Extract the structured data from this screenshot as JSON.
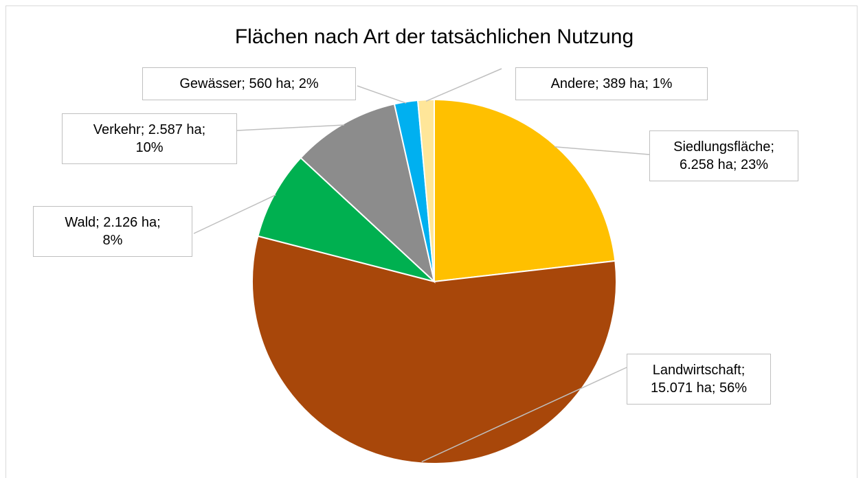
{
  "chart_data": {
    "type": "pie",
    "title": "Flächen nach Art der tatsächlichen Nutzung",
    "values": [
      6258,
      15071,
      2126,
      2587,
      560,
      389
    ],
    "value_labels": [
      "Siedlungsfläche; 6.258 ha; 23%",
      "Landwirtschaft; 15.071 ha; 56%",
      "Wald; 2.126 ha; 8%",
      "Verkehr; 2.587 ha; 10%",
      "Gewässer; 560 ha; 2%",
      "Andere; 389 ha; 1%"
    ],
    "colors": [
      "#FFC000",
      "#A8470A",
      "#00B050",
      "#8C8C8C",
      "#00B0F0",
      "#FFE699"
    ]
  }
}
